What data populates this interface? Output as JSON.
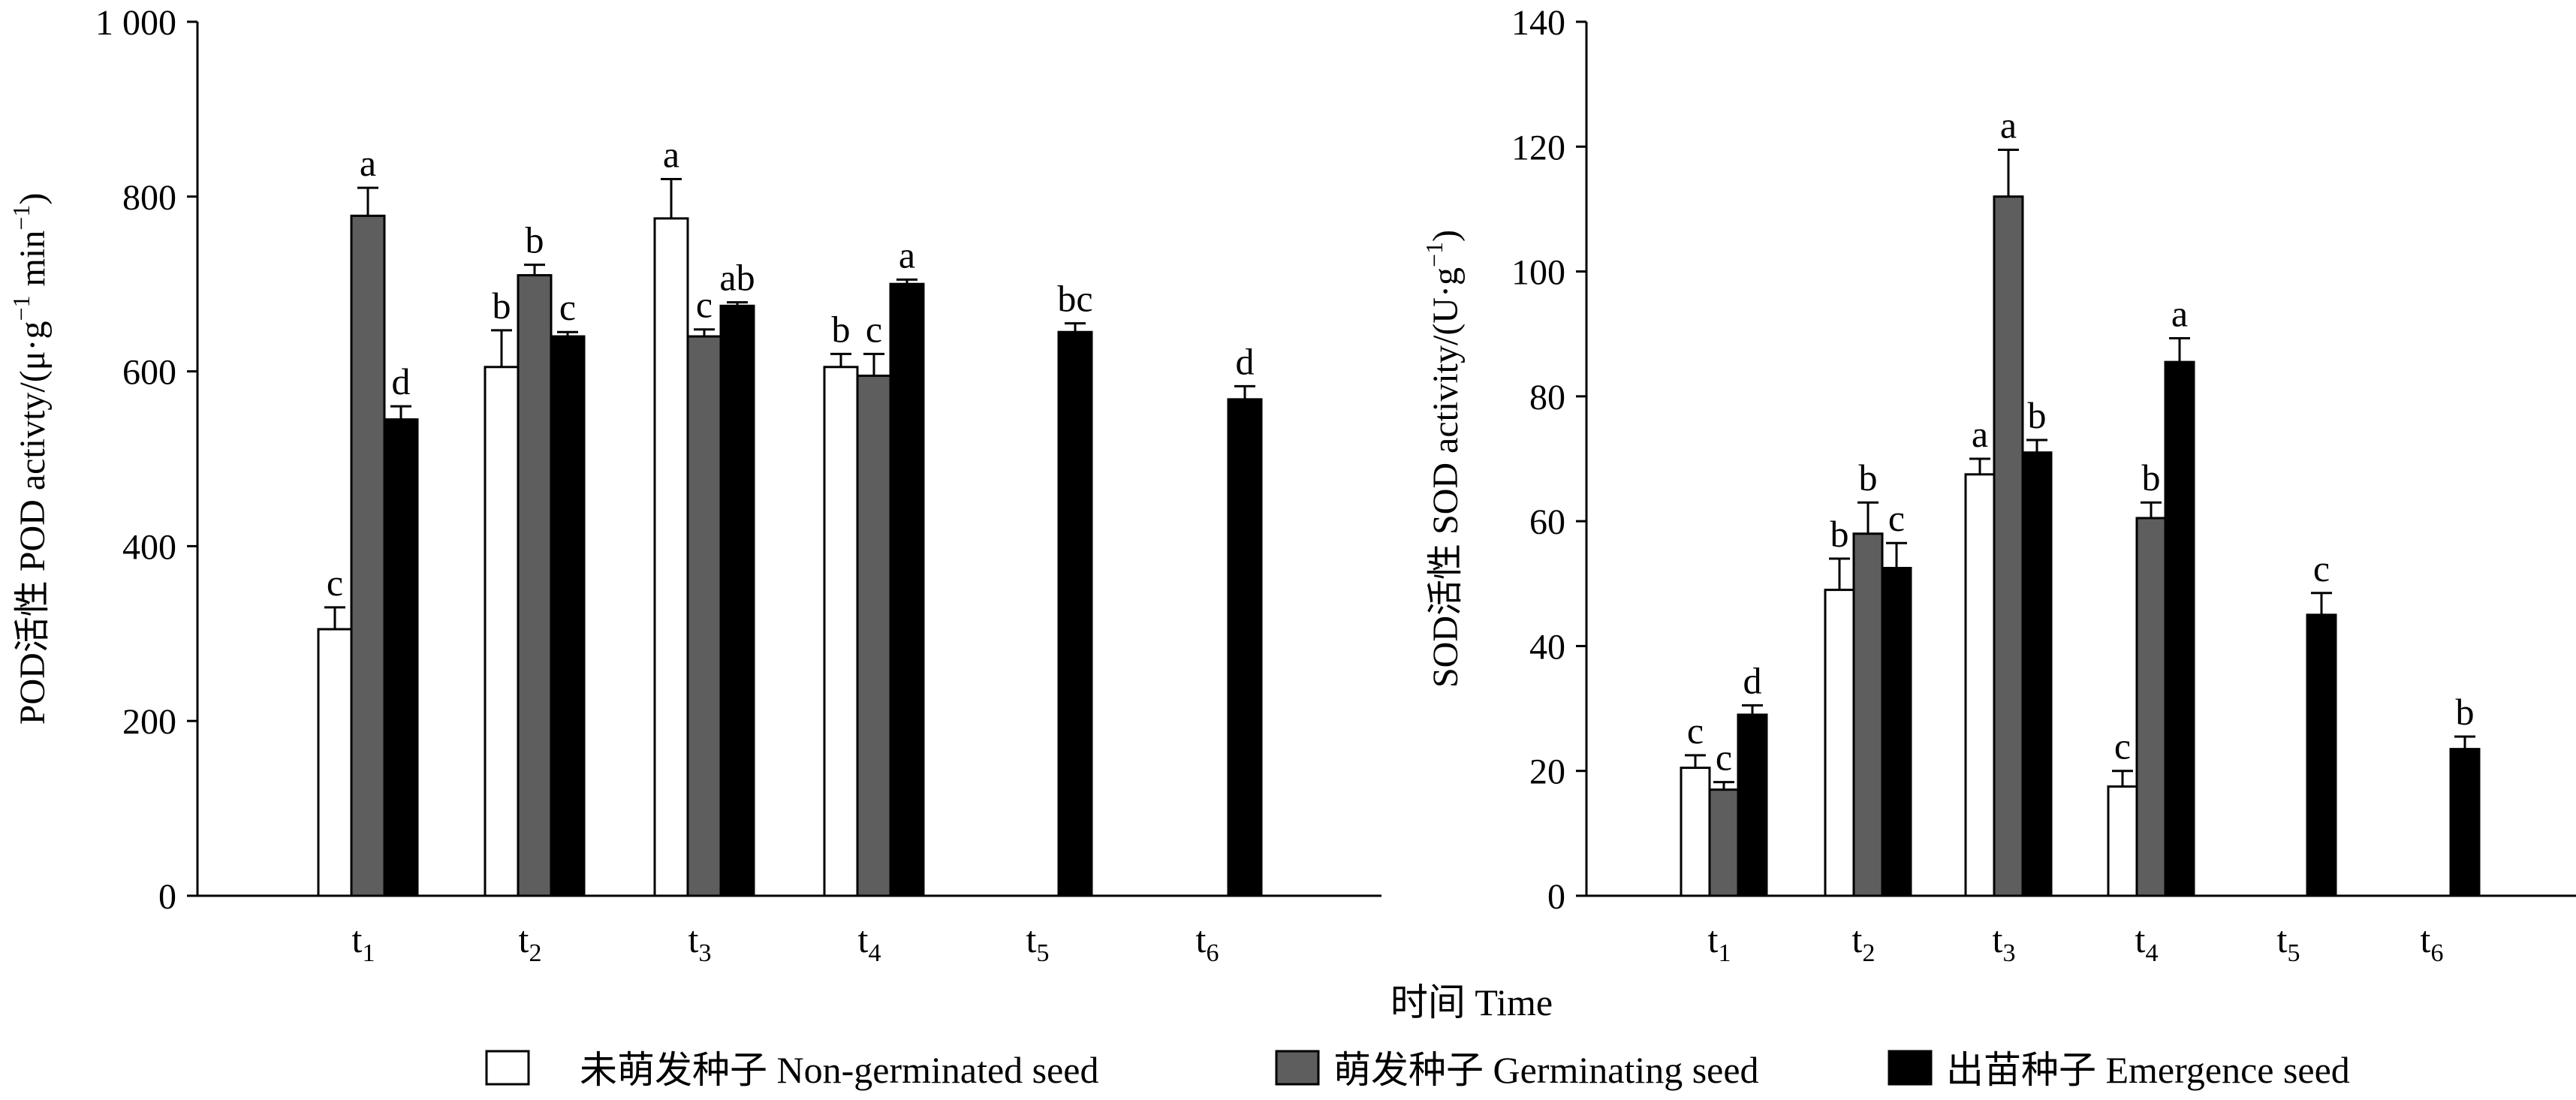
{
  "chart_data": [
    {
      "type": "bar",
      "ylabel_cn": "POD活性",
      "ylabel_en": "POD activty/(μ·g",
      "ylabel_sup1": "−1",
      "ylabel_mid": " min",
      "ylabel_sup2": "−1",
      "ylabel_end": ")",
      "ylim": [
        0,
        1000
      ],
      "yticks": [
        0,
        200,
        400,
        600,
        800,
        1000
      ],
      "ytick_labels": [
        "0",
        "200",
        "400",
        "600",
        "800",
        "1 000"
      ],
      "categories": [
        "t1",
        "t2",
        "t3",
        "t4",
        "t5",
        "t6"
      ],
      "category_labels": [
        [
          "t",
          "1"
        ],
        [
          "t",
          "2"
        ],
        [
          "t",
          "3"
        ],
        [
          "t",
          "4"
        ],
        [
          "t",
          "5"
        ],
        [
          "t",
          "6"
        ]
      ],
      "series": [
        {
          "values": [
            305,
            605,
            775,
            605,
            null,
            null
          ],
          "errors": [
            25,
            42,
            45,
            15,
            null,
            null
          ],
          "letters": [
            "c",
            "b",
            "a",
            "b",
            "",
            ""
          ]
        },
        {
          "values": [
            778,
            710,
            640,
            595,
            null,
            null
          ],
          "errors": [
            32,
            12,
            8,
            25,
            null,
            null
          ],
          "letters": [
            "a",
            "b",
            "c",
            "c",
            "",
            ""
          ]
        },
        {
          "values": [
            545,
            640,
            675,
            700,
            645,
            568
          ],
          "errors": [
            15,
            5,
            4,
            5,
            10,
            15
          ],
          "letters": [
            "d",
            "c",
            "ab",
            "a",
            "bc",
            "d"
          ]
        }
      ]
    },
    {
      "type": "bar",
      "ylabel_cn": "SOD活性",
      "ylabel_en": "SOD activity/(U·g",
      "ylabel_sup1": "−1",
      "ylabel_mid": "",
      "ylabel_sup2": "",
      "ylabel_end": ")",
      "ylim": [
        0,
        140
      ],
      "yticks": [
        0,
        20,
        40,
        60,
        80,
        100,
        120,
        140
      ],
      "ytick_labels": [
        "0",
        "20",
        "40",
        "60",
        "80",
        "100",
        "120",
        "140"
      ],
      "categories": [
        "t1",
        "t2",
        "t3",
        "t4",
        "t5",
        "t6"
      ],
      "category_labels": [
        [
          "t",
          "1"
        ],
        [
          "t",
          "2"
        ],
        [
          "t",
          "3"
        ],
        [
          "t",
          "4"
        ],
        [
          "t",
          "5"
        ],
        [
          "t",
          "6"
        ]
      ],
      "series": [
        {
          "values": [
            20.5,
            49,
            67.5,
            17.5,
            null,
            null
          ],
          "errors": [
            2,
            5,
            2.5,
            2.5,
            null,
            null
          ],
          "letters": [
            "c",
            "b",
            "a",
            "c",
            "",
            ""
          ]
        },
        {
          "values": [
            17,
            58,
            112,
            60.5,
            null,
            null
          ],
          "errors": [
            1.2,
            5,
            7.5,
            2.5,
            null,
            null
          ],
          "letters": [
            "c",
            "b",
            "a",
            "b",
            "",
            ""
          ]
        },
        {
          "values": [
            29,
            52.5,
            71,
            85.5,
            45,
            23.5
          ],
          "errors": [
            1.5,
            4,
            2,
            3.8,
            3.5,
            2
          ],
          "letters": [
            "d",
            "c",
            "b",
            "a",
            "c",
            "b"
          ]
        }
      ]
    }
  ],
  "xlabel": "时间  Time",
  "legend": {
    "placement": "bottom",
    "entries": [
      {
        "label": "未萌发种子  Non-germinated seed",
        "fill": "#ffffff"
      },
      {
        "label": "萌发种子  Germinating seed",
        "fill": "#5e5e5e"
      },
      {
        "label": "出苗种子  Emergence seed",
        "fill": "#000000"
      }
    ]
  },
  "colors": {
    "axis": "#000000",
    "series": [
      "#ffffff",
      "#5e5e5e",
      "#000000"
    ]
  }
}
